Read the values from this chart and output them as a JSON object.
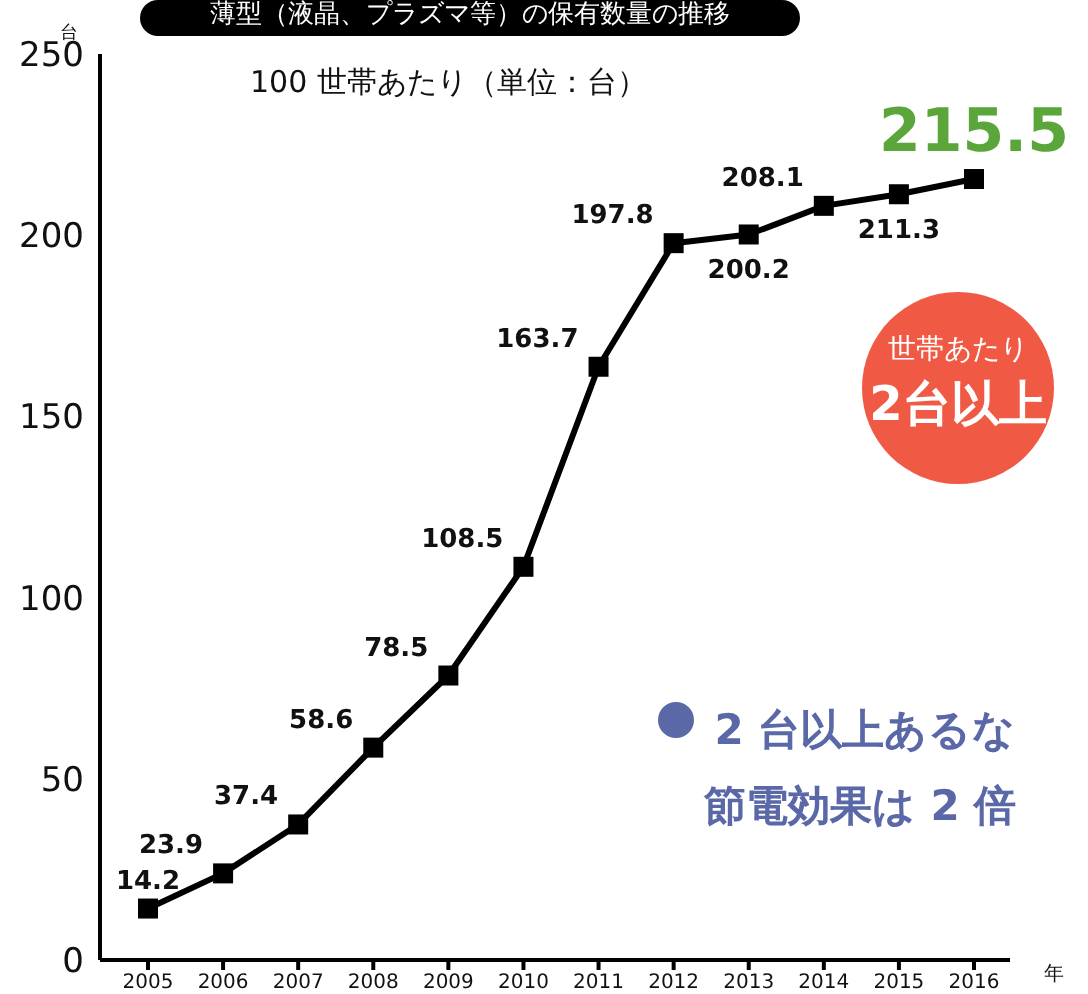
{
  "chart_data": {
    "type": "line",
    "title": "薄型（液晶、プラズマ等）の保有数量の推移",
    "subtitle": "100 世帯あたり（単位：台）",
    "ylabel": "台",
    "xlabel": "年",
    "categories": [
      "2005",
      "2006",
      "2007",
      "2008",
      "2009",
      "2010",
      "2011",
      "2012",
      "2013",
      "2014",
      "2015",
      "2016"
    ],
    "series": [
      {
        "color": "#000000",
        "values": [
          14.2,
          23.9,
          37.4,
          58.6,
          78.5,
          108.5,
          163.7,
          197.8,
          200.2,
          208.1,
          211.3,
          215.5
        ]
      }
    ],
    "ylim": [
      0,
      250
    ],
    "yticks": [
      0,
      50,
      100,
      150,
      200,
      250
    ],
    "marker": "square",
    "data_labels": true,
    "annotations": [
      "世帯あたり",
      "2台以上",
      "2 台以上あるな",
      "節電効果は 2 倍"
    ]
  }
}
